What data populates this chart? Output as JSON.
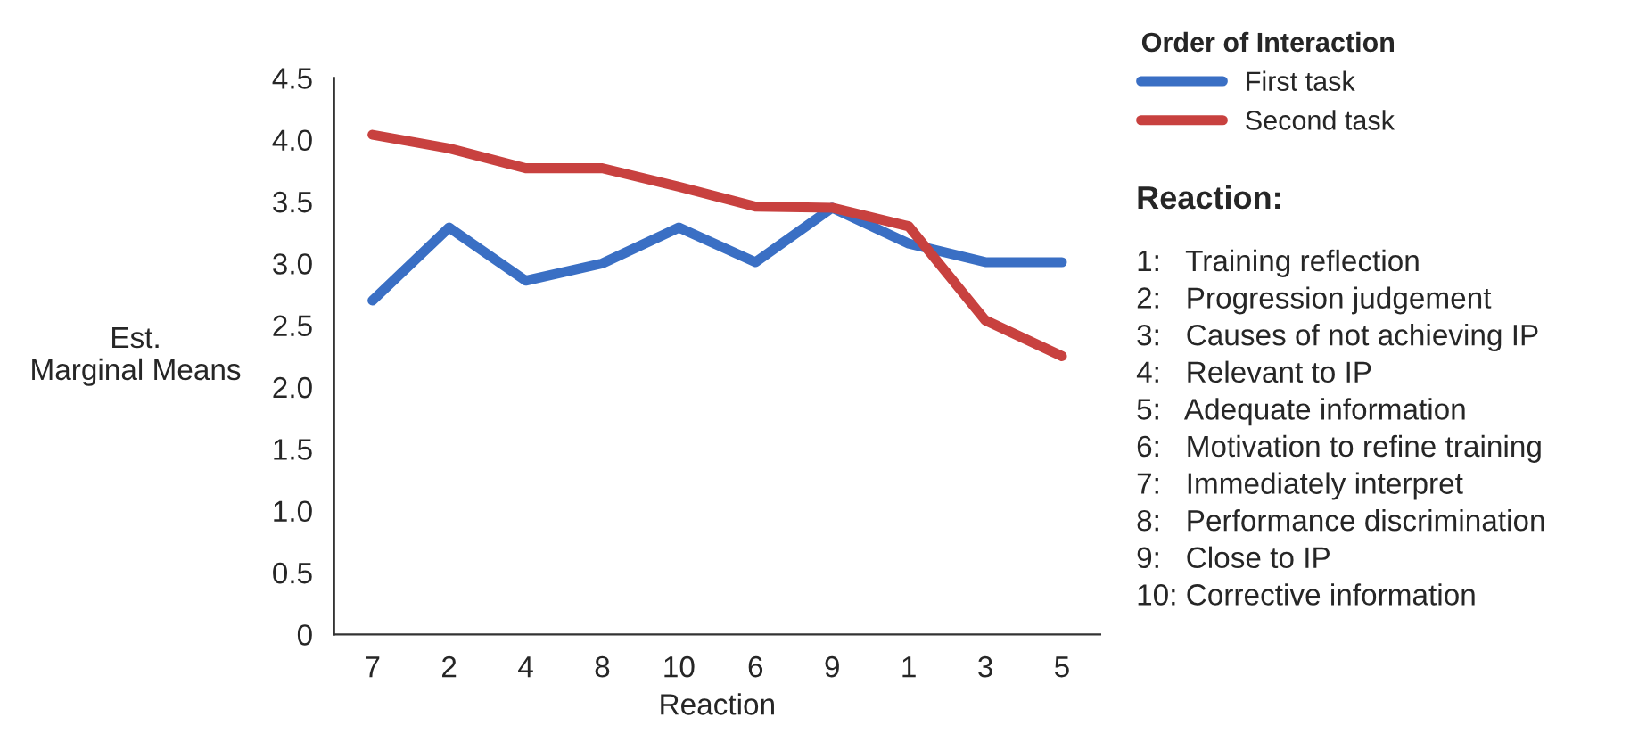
{
  "chart_data": {
    "type": "line",
    "xlabel": "Reaction",
    "ylabel": "Est.\nMarginal Means",
    "categories": [
      "7",
      "2",
      "4",
      "8",
      "10",
      "6",
      "9",
      "1",
      "3",
      "5"
    ],
    "series": [
      {
        "name": "First task",
        "color": "#3a6fc4",
        "values": [
          2.7,
          3.29,
          2.86,
          3.0,
          3.29,
          3.01,
          3.45,
          3.16,
          3.01,
          3.01
        ]
      },
      {
        "name": "Second task",
        "color": "#c8413f",
        "values": [
          4.04,
          3.93,
          3.77,
          3.77,
          3.62,
          3.46,
          3.45,
          3.3,
          2.54,
          2.25
        ]
      }
    ],
    "ylim": [
      0,
      4.5
    ],
    "yticks": [
      0,
      0.5,
      {
        "value": 1,
        "label": "1.0"
      },
      1.5,
      {
        "value": 2,
        "label": "2.0"
      },
      2.5,
      {
        "value": 3,
        "label": "3.0"
      },
      3.5,
      {
        "value": 4,
        "label": "4.0"
      },
      4.5
    ],
    "legend": "top right",
    "legend_title": "Order of Interaction",
    "grid": false,
    "marker": "none",
    "line_style": "solid",
    "annotations": [
      "Reaction:",
      "1:   Training reflection",
      "2:   Progression judgement",
      "3:   Causes of not achieving IP",
      "4:   Relevant to IP",
      "5:   Adequate information",
      "6:   Motivation to refine training",
      "7:   Immediately interpret",
      "8:   Performance discrimination",
      "9:   Close to IP",
      "10: Corrective information"
    ]
  }
}
